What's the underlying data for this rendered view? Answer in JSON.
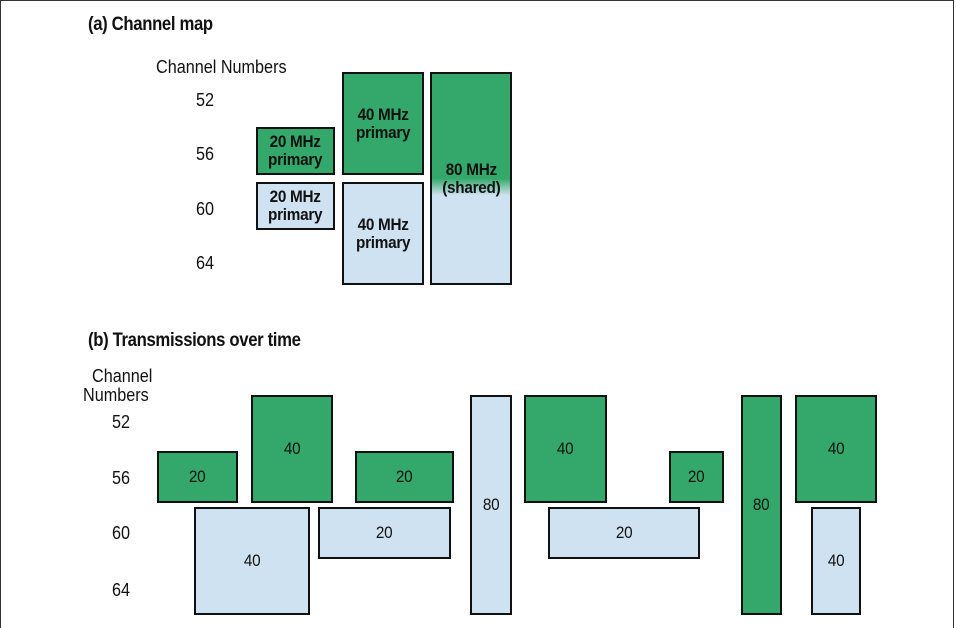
{
  "diagram": {
    "panel_a": {
      "title": "(a) Channel map",
      "axis_label": "Channel Numbers",
      "channels": [
        "52",
        "56",
        "60",
        "64"
      ],
      "blocks": [
        {
          "text": "20 MHz\nprimary",
          "color": "#34a86a"
        },
        {
          "text": "20 MHz\nprimary",
          "color": "#cfe2f1"
        },
        {
          "text": "40 MHz\nprimary",
          "color": "#34a86a"
        },
        {
          "text": "40 MHz\nprimary",
          "color": "#cfe2f1"
        },
        {
          "text": "80 MHz\n(shared)",
          "color": "gradient green-to-blue"
        }
      ]
    },
    "panel_b": {
      "title": "(b) Transmissions over time",
      "axis_label_line1": "Channel",
      "axis_label_line2": "Numbers",
      "channels": [
        "52",
        "56",
        "60",
        "64"
      ],
      "transmissions": [
        "20",
        "40",
        "40",
        "20",
        "20",
        "80",
        "40",
        "20",
        "20",
        "80",
        "40",
        "40"
      ]
    },
    "colors": {
      "green": "#34a86a",
      "light_blue": "#cfe2f1",
      "outline": "#111111"
    }
  }
}
